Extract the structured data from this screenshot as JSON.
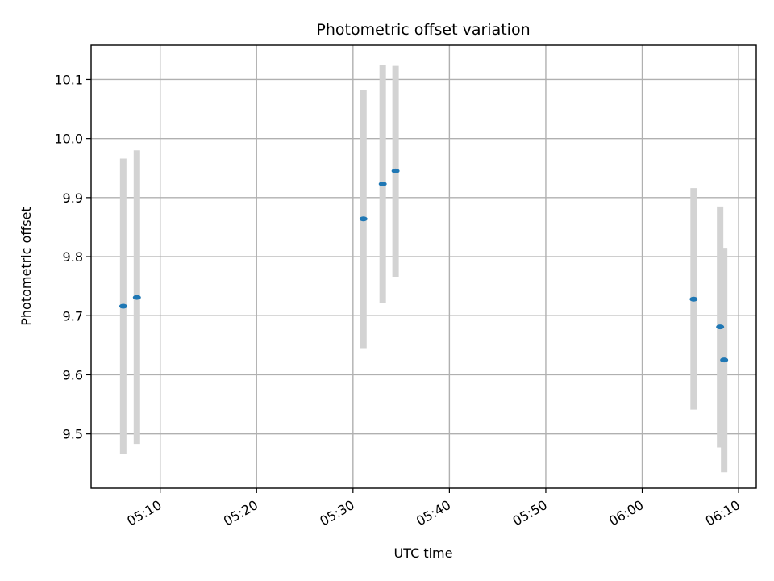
{
  "chart_data": {
    "type": "scatter",
    "title": "Photometric offset variation",
    "xlabel": "UTC time",
    "ylabel": "Photometric offset",
    "x_axis_type": "time",
    "xlim": [
      "05:02:50",
      "06:11:50"
    ],
    "ylim": [
      9.408,
      10.158
    ],
    "grid": true,
    "x_ticks": [
      "05:10",
      "05:20",
      "05:30",
      "05:40",
      "05:50",
      "06:00",
      "06:10"
    ],
    "y_ticks": [
      "9.5",
      "9.6",
      "9.7",
      "9.8",
      "9.9",
      "10.0",
      "10.1"
    ],
    "x_tick_label_rotation_deg": 30,
    "colors": {
      "point": "#1f77b4",
      "errorbar": "#d3d3d3",
      "grid": "#b0b0b0"
    },
    "series": [
      {
        "points": [
          {
            "x": "05:06:10",
            "y": 9.716,
            "ylow": 9.466,
            "yhigh": 9.966
          },
          {
            "x": "05:07:35",
            "y": 9.731,
            "ylow": 9.483,
            "yhigh": 9.98
          },
          {
            "x": "05:31:05",
            "y": 9.864,
            "ylow": 9.645,
            "yhigh": 10.082
          },
          {
            "x": "05:33:05",
            "y": 9.923,
            "ylow": 9.721,
            "yhigh": 10.124
          },
          {
            "x": "05:34:25",
            "y": 9.945,
            "ylow": 9.766,
            "yhigh": 10.123
          },
          {
            "x": "06:05:20",
            "y": 9.728,
            "ylow": 9.541,
            "yhigh": 9.916
          },
          {
            "x": "06:08:05",
            "y": 9.681,
            "ylow": 9.477,
            "yhigh": 9.885
          },
          {
            "x": "06:08:30",
            "y": 9.625,
            "ylow": 9.435,
            "yhigh": 9.815
          }
        ]
      }
    ]
  }
}
